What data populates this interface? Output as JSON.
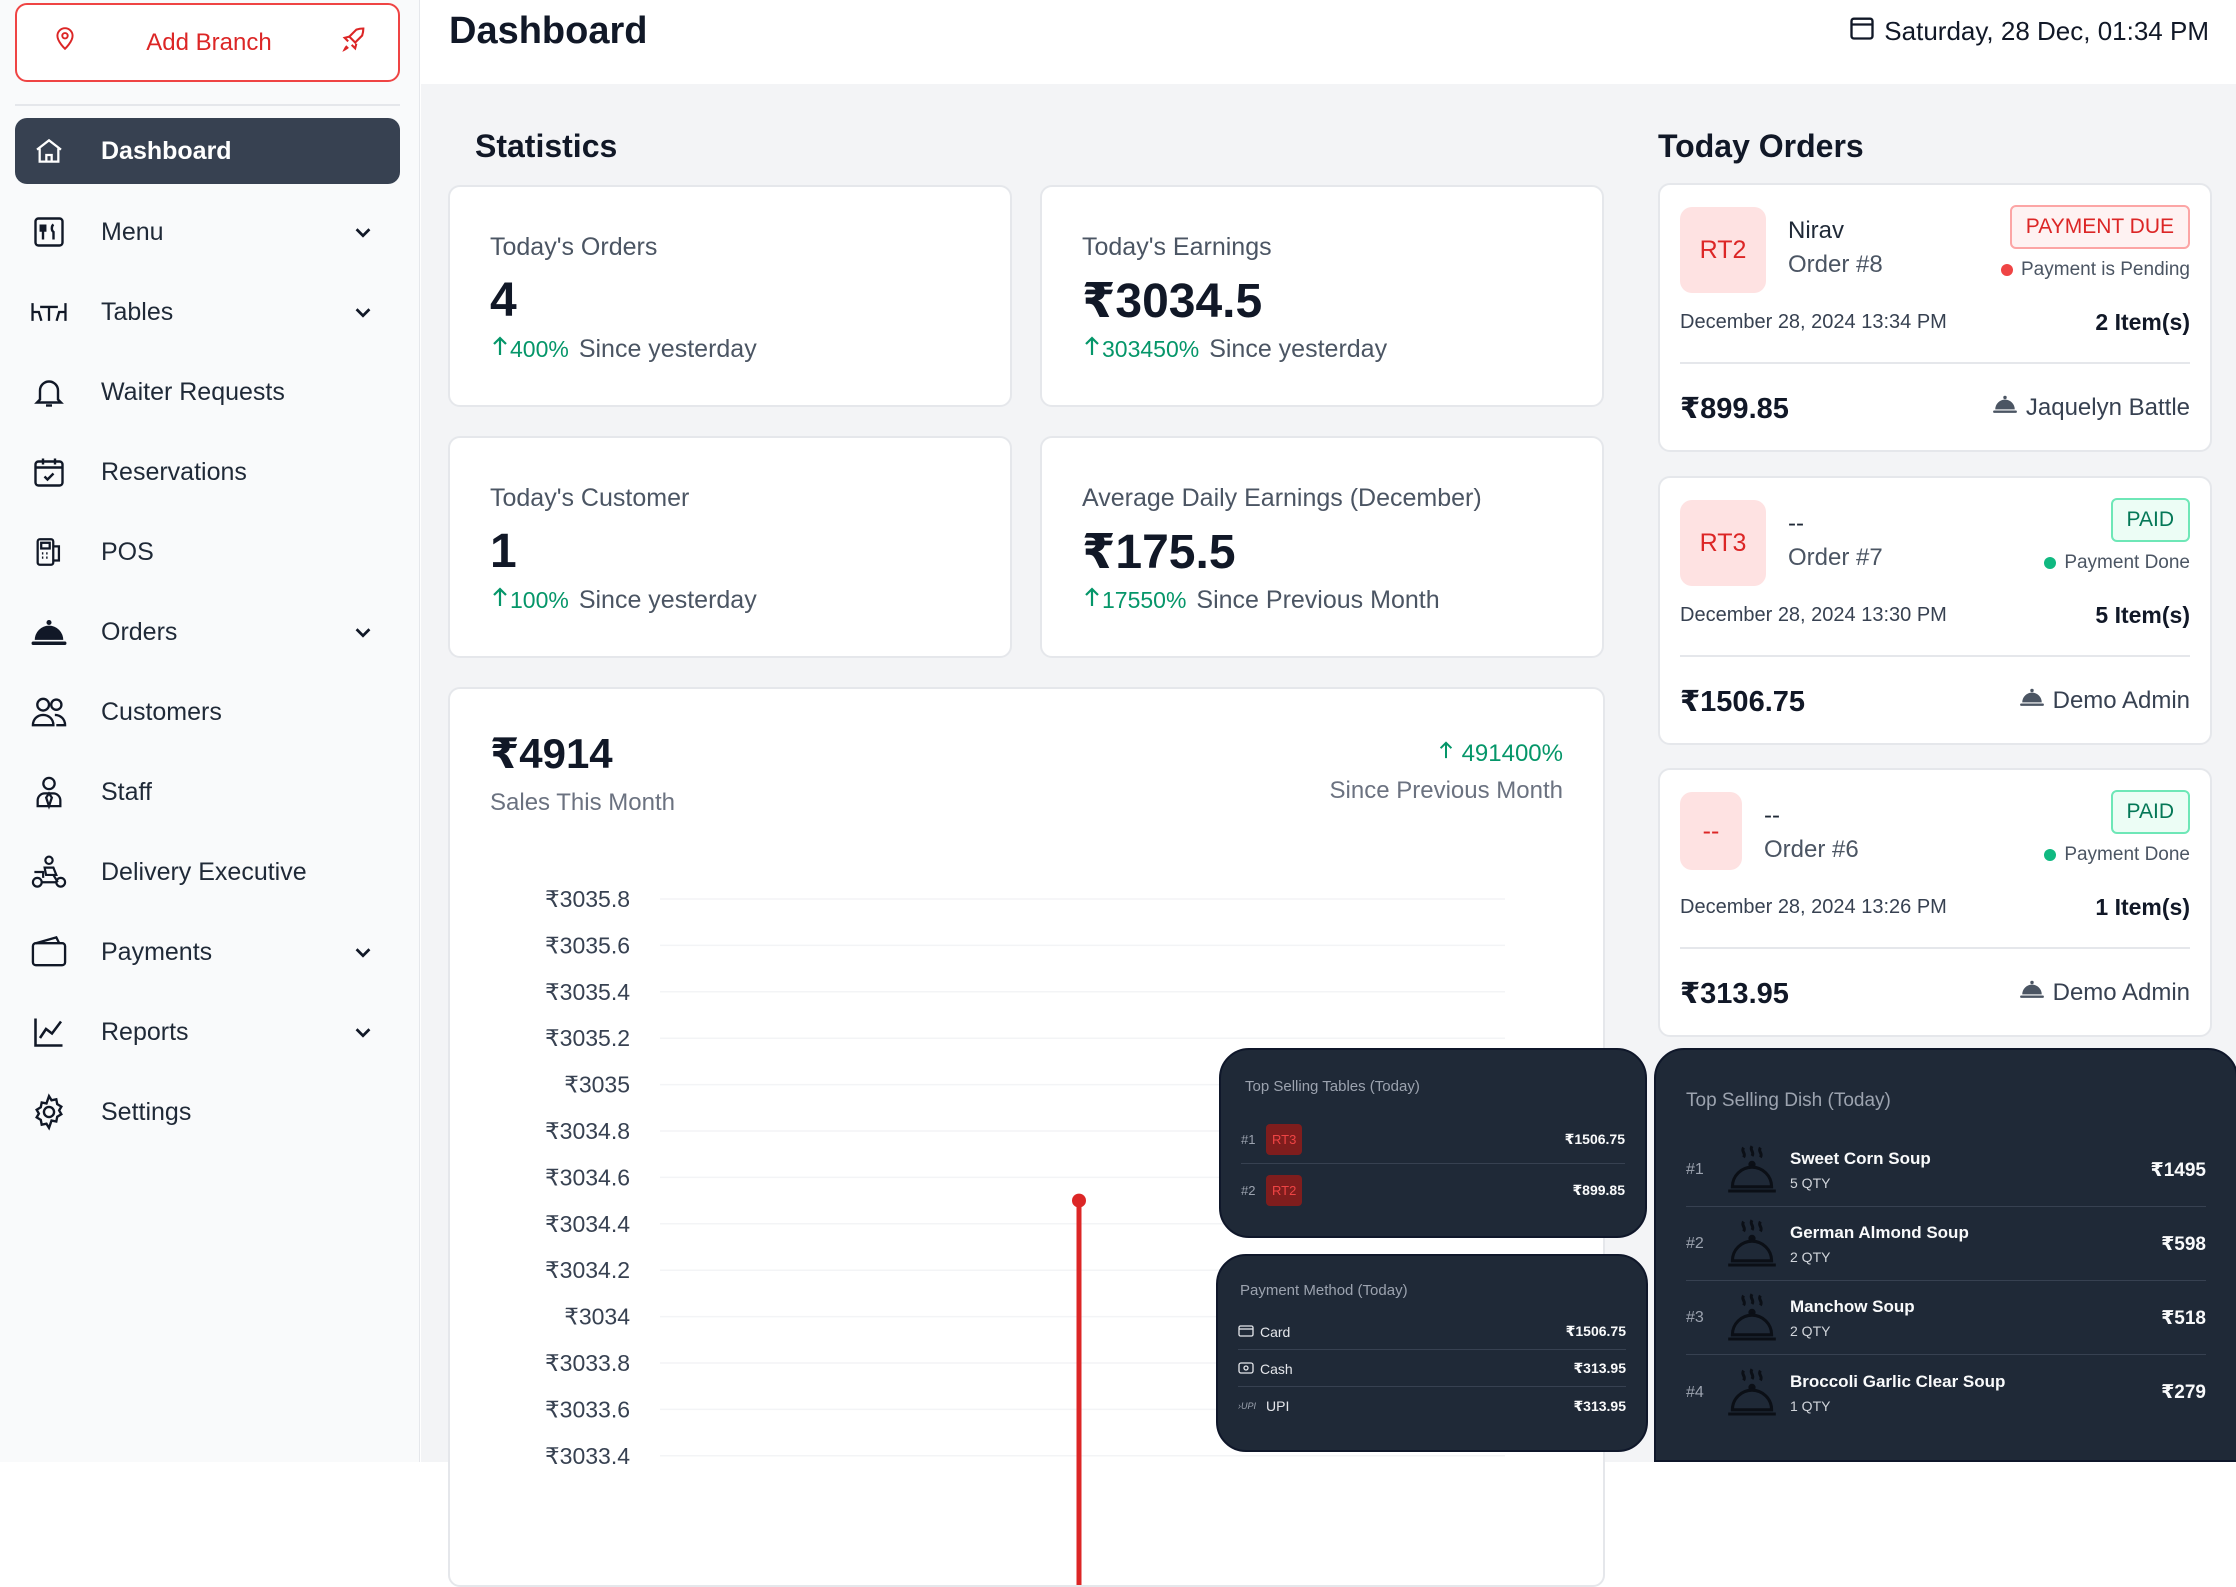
{
  "sidebar": {
    "add_branch_label": "Add Branch",
    "items": [
      {
        "label": "Dashboard",
        "icon": "home-icon",
        "active": true
      },
      {
        "label": "Menu",
        "icon": "menu-icon",
        "dropdown": true
      },
      {
        "label": "Tables",
        "icon": "table-icon",
        "dropdown": true
      },
      {
        "label": "Waiter Requests",
        "icon": "bell-icon"
      },
      {
        "label": "Reservations",
        "icon": "calendar-check-icon"
      },
      {
        "label": "POS",
        "icon": "pos-icon"
      },
      {
        "label": "Orders",
        "icon": "cloche-icon",
        "dropdown": true
      },
      {
        "label": "Customers",
        "icon": "users-icon"
      },
      {
        "label": "Staff",
        "icon": "staff-icon"
      },
      {
        "label": "Delivery Executive",
        "icon": "scooter-icon"
      },
      {
        "label": "Payments",
        "icon": "wallet-icon",
        "dropdown": true
      },
      {
        "label": "Reports",
        "icon": "chart-line-icon",
        "dropdown": true
      },
      {
        "label": "Settings",
        "icon": "gear-icon"
      }
    ]
  },
  "header": {
    "title": "Dashboard",
    "datetime": "Saturday, 28 Dec, 01:34 PM"
  },
  "statistics": {
    "title": "Statistics",
    "cards": [
      {
        "label": "Today's Orders",
        "value": "4",
        "change": "400%",
        "since": "Since yesterday"
      },
      {
        "label": "Today's Earnings",
        "value": "₹3034.5",
        "change": "303450%",
        "since": "Since yesterday"
      },
      {
        "label": "Today's Customer",
        "value": "1",
        "change": "100%",
        "since": "Since yesterday"
      },
      {
        "label": "Average Daily Earnings (December)",
        "value": "₹175.5",
        "change": "17550%",
        "since": "Since Previous Month"
      }
    ]
  },
  "sales": {
    "total": "₹4914",
    "label": "Sales This Month",
    "growth": "491400%",
    "since": "Since Previous Month"
  },
  "chart_data": {
    "type": "line",
    "title": "",
    "xlabel": "",
    "ylabel": "",
    "y_tick_labels": [
      "₹3035.8",
      "₹3035.6",
      "₹3035.4",
      "₹3035.2",
      "₹3035",
      "₹3034.8",
      "₹3034.6",
      "₹3034.4",
      "₹3034.2",
      "₹3034",
      "₹3033.8",
      "₹3033.6",
      "₹3033.4"
    ],
    "ylim": [
      3033.4,
      3035.8
    ],
    "series": [
      {
        "values": [
          3034.5
        ]
      }
    ],
    "color": "#dc2626",
    "grid": true
  },
  "today_orders": {
    "title": "Today Orders",
    "orders": [
      {
        "table": "RT2",
        "customer": "Nirav",
        "order_no": "Order #8",
        "badge": "PAYMENT DUE",
        "badge_type": "due",
        "payment_status": "Payment is Pending",
        "date": "December 28, 2024 13:34 PM",
        "items": "2 Item(s)",
        "amount": "₹899.85",
        "waiter": "Jaquelyn Battle"
      },
      {
        "table": "RT3",
        "customer": "--",
        "order_no": "Order #7",
        "badge": "PAID",
        "badge_type": "paid",
        "payment_status": "Payment Done",
        "date": "December 28, 2024 13:30 PM",
        "items": "5 Item(s)",
        "amount": "₹1506.75",
        "waiter": "Demo Admin"
      },
      {
        "table": "--",
        "customer": "--",
        "order_no": "Order #6",
        "badge": "PAID",
        "badge_type": "paid",
        "payment_status": "Payment Done",
        "date": "December 28, 2024 13:26 PM",
        "items": "1 Item(s)",
        "amount": "₹313.95",
        "waiter": "Demo Admin"
      }
    ]
  },
  "top_tables": {
    "title": "Top Selling Tables (Today)",
    "rows": [
      {
        "rank": "#1",
        "table": "RT3",
        "amount": "₹1506.75"
      },
      {
        "rank": "#2",
        "table": "RT2",
        "amount": "₹899.85"
      }
    ]
  },
  "payment_methods": {
    "title": "Payment Method (Today)",
    "rows": [
      {
        "method": "Card",
        "icon": "card-icon",
        "amount": "₹1506.75"
      },
      {
        "method": "Cash",
        "icon": "cash-icon",
        "amount": "₹313.95"
      },
      {
        "method": "UPI",
        "icon": "upi-icon",
        "amount": "₹313.95"
      }
    ]
  },
  "top_dishes": {
    "title": "Top Selling Dish (Today)",
    "rows": [
      {
        "rank": "#1",
        "name": "Sweet Corn Soup",
        "qty": "5 QTY",
        "price": "₹1495"
      },
      {
        "rank": "#2",
        "name": "German Almond Soup",
        "qty": "2 QTY",
        "price": "₹598"
      },
      {
        "rank": "#3",
        "name": "Manchow Soup",
        "qty": "2 QTY",
        "price": "₹518"
      },
      {
        "rank": "#4",
        "name": "Broccoli Garlic Clear Soup",
        "qty": "1 QTY",
        "price": "₹279"
      }
    ]
  },
  "colors": {
    "accent": "#dc2626",
    "positive": "#059669",
    "sidebar_active": "#374151",
    "dark_widget": "#1f2937"
  }
}
